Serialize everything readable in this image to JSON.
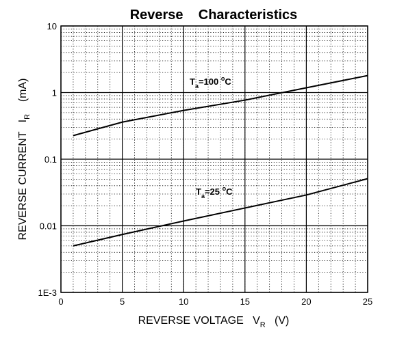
{
  "chart_data": {
    "type": "line",
    "title": "Reverse    Characteristics",
    "x_label": {
      "parts": [
        "REVERSE VOLTAGE   V",
        "R",
        "   (V)"
      ]
    },
    "y_label": {
      "parts": [
        "REVERSE CURRENT   I",
        "R",
        "    (mA)"
      ]
    },
    "xlim": [
      0,
      25
    ],
    "xticks": [
      0,
      5,
      10,
      15,
      20,
      25
    ],
    "ylim": [
      0.001,
      10
    ],
    "yticks": [
      10,
      1,
      0.1,
      0.01,
      {
        "value": 0.001,
        "label": "1E-3"
      }
    ],
    "log_y": true,
    "grid": true,
    "minor_grid": true,
    "series": [
      {
        "color": "#000000",
        "x": [
          1,
          5,
          10,
          15,
          20,
          25
        ],
        "values": [
          0.226,
          0.36,
          0.54,
          0.77,
          1.18,
          1.8
        ]
      },
      {
        "color": "#000000",
        "x": [
          1,
          5,
          10,
          15,
          20,
          25
        ],
        "values": [
          0.005,
          0.0074,
          0.0118,
          0.0185,
          0.029,
          0.051
        ]
      }
    ],
    "annotations": [
      {
        "parts": [
          "T",
          "a",
          "=100 ",
          "o",
          "C"
        ]
      },
      {
        "parts": [
          "T",
          "a",
          "=25 ",
          "o",
          "C"
        ]
      }
    ]
  }
}
